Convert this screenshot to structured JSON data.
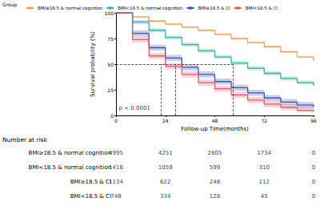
{
  "chart_data": {
    "type": "line",
    "line_style": "step",
    "legend_title": "Group",
    "legend": "top",
    "ylabel": "Survival probability (%)",
    "xlabel": "Follow-up Time(months)",
    "xlim": [
      0,
      96
    ],
    "xticks": [
      0,
      24,
      48,
      72,
      96
    ],
    "ylim": [
      0,
      100
    ],
    "yticks": [
      0,
      25,
      50,
      75,
      100
    ],
    "grid": false,
    "x": [
      0,
      8,
      16,
      24,
      32,
      40,
      48,
      56,
      64,
      72,
      80,
      88,
      96
    ],
    "median_level": 50,
    "series": [
      {
        "name": "BMI≥18.5 & normal cognition",
        "color": "#F6A05C",
        "values": [
          100,
          96,
          92,
          89,
          86,
          83,
          79,
          75,
          71,
          67,
          62,
          57,
          53
        ],
        "lower": [
          100,
          95,
          91,
          88,
          85,
          82,
          78,
          74,
          70,
          66,
          61,
          56,
          52
        ],
        "upper": [
          100,
          97,
          93,
          90,
          87,
          84,
          80,
          76,
          72,
          68,
          63,
          58,
          54
        ]
      },
      {
        "name": "BMI<18.5 & normal cognition",
        "color": "#35B5A5",
        "values": [
          100,
          91,
          83,
          76,
          69,
          63,
          57,
          51,
          46,
          41,
          36,
          32,
          29
        ],
        "lower": [
          100,
          89,
          81,
          74,
          67,
          61,
          55,
          49,
          44,
          39,
          34,
          30,
          27
        ],
        "upper": [
          100,
          93,
          85,
          78,
          71,
          65,
          59,
          53,
          48,
          43,
          38,
          34,
          31
        ],
        "median": 57
      },
      {
        "name": "BMI≥18.5 & CI",
        "color": "#3F51B5",
        "values": [
          100,
          80,
          66,
          56,
          47,
          40,
          33,
          27,
          22,
          17,
          13,
          10,
          8
        ],
        "lower": [
          100,
          77,
          63,
          53,
          44,
          37,
          30,
          24,
          19,
          14,
          10,
          7,
          5
        ],
        "upper": [
          100,
          83,
          69,
          59,
          50,
          43,
          36,
          30,
          25,
          20,
          16,
          13,
          11
        ],
        "median": 29
      },
      {
        "name": "BMI<18.5 & CI",
        "color": "#E8596A",
        "values": [
          100,
          74,
          58,
          48,
          40,
          32,
          26,
          20,
          15,
          11,
          8,
          5,
          4
        ],
        "lower": [
          100,
          71,
          55,
          45,
          37,
          29,
          23,
          17,
          12,
          8,
          5,
          3,
          1
        ],
        "upper": [
          100,
          77,
          61,
          51,
          43,
          35,
          29,
          23,
          18,
          14,
          11,
          8,
          7
        ],
        "median": 22
      }
    ],
    "annotations": [
      {
        "text": "p < 0.0001",
        "x": 9,
        "y": 7
      }
    ],
    "risk_table": {
      "title": "Number at risk",
      "times": [
        0,
        24,
        48,
        72,
        96
      ],
      "rows": [
        {
          "name": "BMI≥18.5 & normal cognition",
          "values": [
            4995,
            4251,
            2805,
            1734,
            0
          ]
        },
        {
          "name": "BMI<18.5 & normal cognition",
          "values": [
            1416,
            1059,
            599,
            310,
            0
          ]
        },
        {
          "name": "BMI≥18.5 & CI",
          "values": [
            1134,
            622,
            248,
            112,
            0
          ]
        },
        {
          "name": "BMI<18.5 & CI",
          "values": [
            748,
            334,
            128,
            45,
            0
          ]
        }
      ]
    }
  }
}
